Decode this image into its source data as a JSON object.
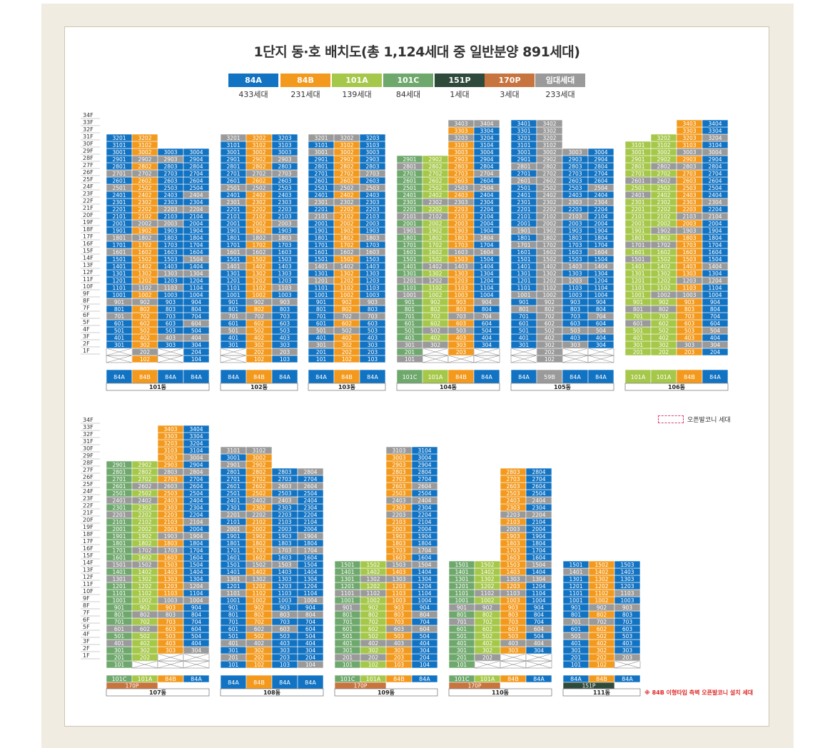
{
  "title": "1단지 동·호 배치도(총 1,124세대 중 일반분양 891세대)",
  "legend": [
    {
      "label": "84A",
      "count": "433세대",
      "color": "#1273c3"
    },
    {
      "label": "84B",
      "count": "231세대",
      "color": "#f39a1e"
    },
    {
      "label": "101A",
      "count": "139세대",
      "color": "#a6c84a"
    },
    {
      "label": "101C",
      "count": "84세대",
      "color": "#6fa86d"
    },
    {
      "label": "151P",
      "count": "1세대",
      "color": "#2f4a3b"
    },
    {
      "label": "170P",
      "count": "3세대",
      "color": "#c8743e"
    },
    {
      "label": "임대세대",
      "count": "233세대",
      "color": "#9a9a9a"
    }
  ],
  "notes": {
    "openBalcony": "오픈발코니 세대",
    "footnote": "※ 84B 이형타입 측벽 오픈발코니 설치 세대"
  },
  "floor_labels": [
    "34F",
    "33F",
    "32F",
    "31F",
    "30F",
    "29F",
    "28F",
    "27F",
    "26F",
    "25F",
    "24F",
    "23F",
    "22F",
    "21F",
    "20F",
    "19F",
    "18F",
    "17F",
    "16F",
    "15F",
    "14F",
    "13F",
    "12F",
    "11F",
    "10F",
    "9F",
    "8F",
    "7F",
    "6F",
    "5F",
    "4F",
    "3F",
    "2F",
    "1F"
  ],
  "buildings": [
    {
      "name": "101동",
      "row": 0,
      "lines": 4,
      "maxFloors": [
        32,
        32,
        30,
        30
      ],
      "minFloor": [
        1,
        1,
        1,
        1
      ],
      "types": [
        "84A",
        "84B",
        "84A",
        "84A"
      ],
      "cross": {
        "2": [
          1,
          3
        ],
        "1": [
          1,
          3
        ]
      }
    },
    {
      "name": "102동",
      "row": 0,
      "lines": 3,
      "maxFloors": [
        32,
        32,
        32
      ],
      "minFloor": [
        1,
        1,
        1
      ],
      "types": [
        "84A",
        "84B",
        "84A"
      ],
      "cross": {
        "2": [
          1
        ],
        "1": [
          1
        ]
      }
    },
    {
      "name": "103동",
      "row": 0,
      "lines": 3,
      "maxFloors": [
        32,
        32,
        32
      ],
      "minFloor": [
        1,
        1,
        1
      ],
      "types": [
        "84A",
        "84B",
        "84A"
      ],
      "cross": {}
    },
    {
      "name": "104동",
      "row": 0,
      "lines": 4,
      "maxFloors": [
        29,
        29,
        34,
        34
      ],
      "minFloor": [
        1,
        1,
        1,
        1
      ],
      "types": [
        "101C",
        "101A",
        "84B",
        "84A"
      ],
      "cross": {
        "2": [
          2,
          4
        ],
        "1": [
          2,
          3,
          4
        ]
      }
    },
    {
      "name": "105동",
      "row": 0,
      "lines": 4,
      "maxFloors": [
        34,
        34,
        30,
        30
      ],
      "minFloor": [
        1,
        1,
        1,
        1
      ],
      "types": [
        "84A",
        "59B",
        "84A",
        "84A"
      ],
      "cross": {
        "2": [
          1,
          3,
          4
        ],
        "1": [
          1,
          3,
          4
        ]
      }
    },
    {
      "name": "106동",
      "row": 0,
      "lines": 4,
      "maxFloors": [
        31,
        32,
        34,
        34
      ],
      "minFloor": [
        2,
        2,
        2,
        2
      ],
      "types": [
        "101A",
        "101A",
        "84B",
        "84A"
      ],
      "cross": {
        "1": [
          1,
          2,
          3,
          4
        ]
      }
    },
    {
      "name": "107동",
      "row": 1,
      "lines": 4,
      "maxFloors": [
        29,
        29,
        34,
        34
      ],
      "minFloor": [
        1,
        1,
        1,
        1
      ],
      "types": [
        "101C",
        "101A",
        "84B",
        "84A",
        "170P"
      ],
      "cross": {
        "2": [
          3,
          4
        ],
        "1": [
          2,
          3,
          4
        ]
      }
    },
    {
      "name": "108동",
      "row": 1,
      "lines": 4,
      "maxFloors": [
        31,
        31,
        28,
        28
      ],
      "minFloor": [
        1,
        1,
        1,
        1
      ],
      "types": [
        "84A",
        "84B",
        "84A",
        "84A"
      ],
      "cross": {}
    },
    {
      "name": "109동",
      "row": 1,
      "lines": 4,
      "maxFloors": [
        15,
        15,
        31,
        31
      ],
      "minFloor": [
        1,
        1,
        1,
        1
      ],
      "types": [
        "101C",
        "101A",
        "84B",
        "84A",
        "170P"
      ],
      "cross": {}
    },
    {
      "name": "110동",
      "row": 1,
      "lines": 4,
      "maxFloors": [
        15,
        15,
        28,
        28
      ],
      "minFloor": [
        1,
        1,
        1,
        1
      ],
      "types": [
        "101C",
        "101A",
        "84B",
        "84A",
        "170P"
      ],
      "cross": {
        "2": [
          3,
          4
        ],
        "1": [
          2,
          3,
          4
        ]
      }
    },
    {
      "name": "111동",
      "row": 1,
      "lines": 3,
      "maxFloors": [
        15,
        15,
        15
      ],
      "minFloor": [
        1,
        1,
        1
      ],
      "types": [
        "84A",
        "84B",
        "84A",
        "151P"
      ],
      "cross": {
        "1": [
          3
        ]
      }
    }
  ]
}
